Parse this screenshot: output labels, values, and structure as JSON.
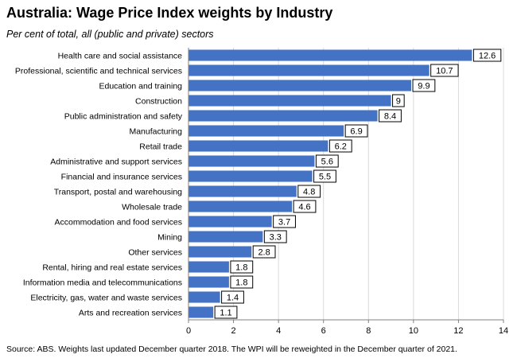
{
  "header": {
    "title": "Australia:  Wage Price Index weights by Industry",
    "subtitle": "Per cent of total, all (public and private) sectors"
  },
  "footer": {
    "source": "Source: ABS. Weights last updated December quarter 2018. The WPI will be reweighted in the December quarter of 2021."
  },
  "colors": {
    "bar": "#4472c4",
    "axis": "#808080",
    "grid": "#d9d9d9"
  },
  "chart_data": {
    "type": "bar",
    "orientation": "horizontal",
    "title": "Australia:  Wage Price Index weights by Industry",
    "subtitle": "Per cent of total, all (public and private) sectors",
    "xlabel": "",
    "ylabel": "",
    "xlim": [
      0,
      14
    ],
    "x_ticks": [
      0,
      2,
      4,
      6,
      8,
      10,
      12,
      14
    ],
    "grid": true,
    "legend": "none",
    "categories": [
      "Health care and social assistance",
      "Professional, scientific and technical services",
      "Education and training",
      "Construction",
      "Public administration and safety",
      "Manufacturing",
      "Retail trade",
      "Administrative and support services",
      "Financial and insurance services",
      "Transport, postal and warehousing",
      "Wholesale trade",
      "Accommodation and food services",
      "Mining",
      "Other services",
      "Rental, hiring and real estate services",
      "Information media and telecommunications",
      "Electricity, gas, water and waste services",
      "Arts and recreation services"
    ],
    "values": [
      12.6,
      10.7,
      9.9,
      9,
      8.4,
      6.9,
      6.2,
      5.6,
      5.5,
      4.8,
      4.6,
      3.7,
      3.3,
      2.8,
      1.8,
      1.8,
      1.4,
      1.1
    ],
    "data_labels": [
      "12.6",
      "10.7",
      "9.9",
      "9",
      "8.4",
      "6.9",
      "6.2",
      "5.6",
      "5.5",
      "4.8",
      "4.6",
      "3.7",
      "3.3",
      "2.8",
      "1.8",
      "1.8",
      "1.4",
      "1.1"
    ]
  }
}
